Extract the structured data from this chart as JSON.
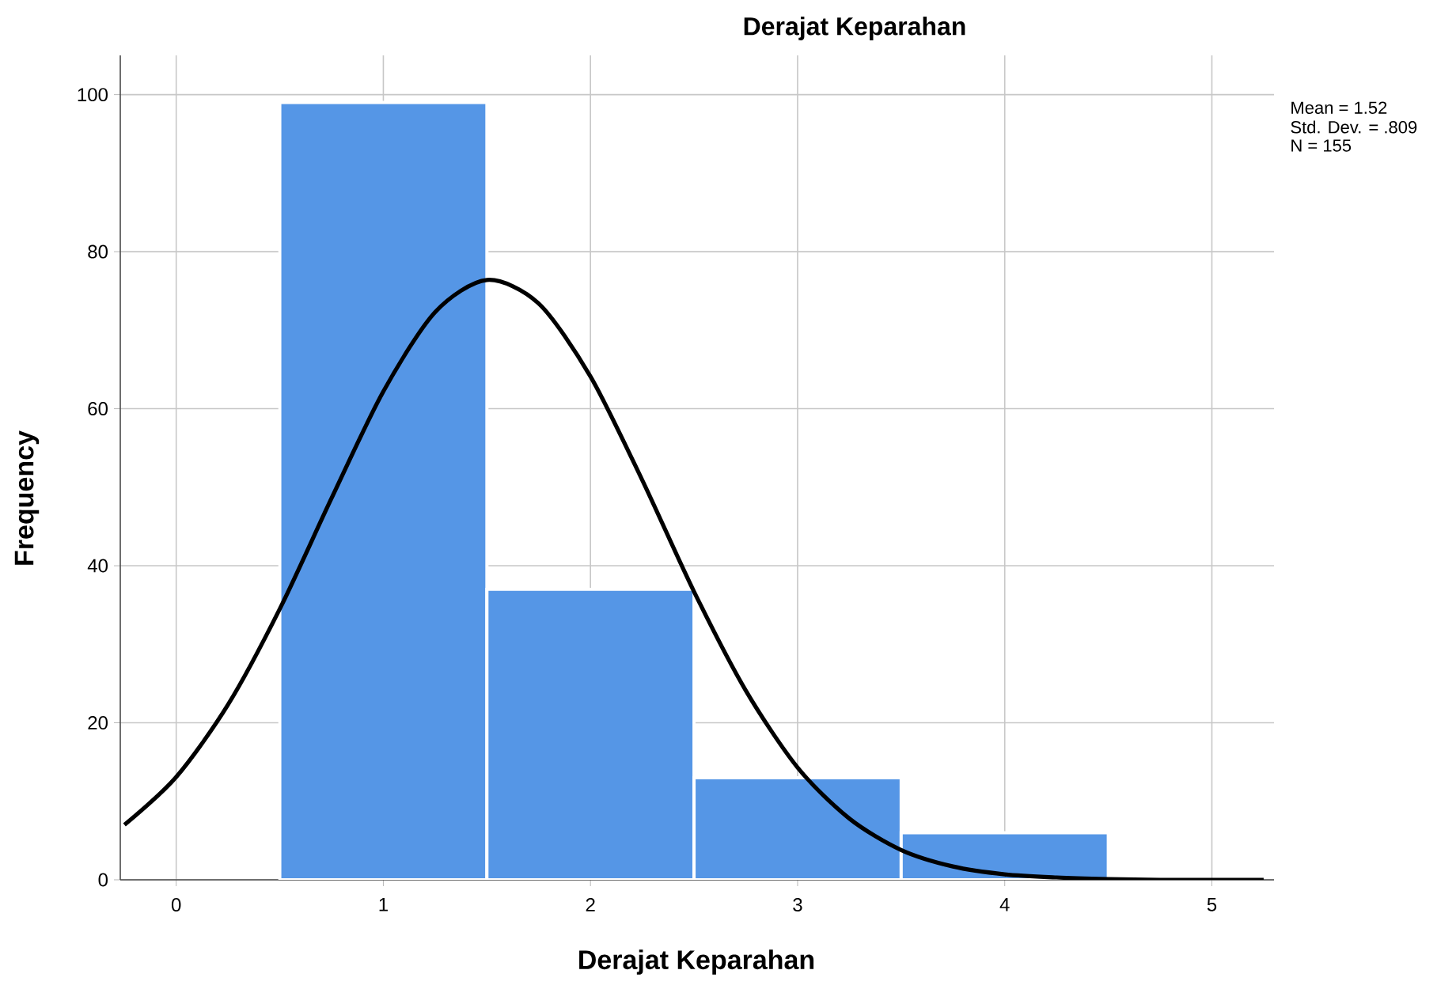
{
  "chart_data": {
    "type": "histogram",
    "title": "Derajat Keparahan",
    "xlabel": "Derajat Keparahan",
    "ylabel": "Frequency",
    "annotations": [
      "Mean = 1.52",
      "Std. Dev. = .809",
      "N = 155"
    ],
    "xlim": [
      -0.27,
      5.3
    ],
    "ylim": [
      0,
      105
    ],
    "xticks": [
      0,
      1,
      2,
      3,
      4,
      5
    ],
    "yticks": [
      0,
      20,
      40,
      60,
      80,
      100
    ],
    "grid": true,
    "series": [
      {
        "bins": [
          0.5,
          1.5,
          2.5,
          3.5,
          4.5
        ],
        "values": [
          99,
          37,
          13,
          6
        ],
        "color": "#5596e6"
      },
      {
        "type": "line",
        "color": "#000000",
        "x": [
          -0.25,
          0,
          0.25,
          0.5,
          0.75,
          1,
          1.25,
          1.5,
          1.75,
          2,
          2.25,
          2.5,
          2.75,
          3,
          3.25,
          3.5,
          3.75,
          4,
          4.25,
          4.5,
          4.75,
          5,
          5.25
        ],
        "values": [
          7.0,
          13.1,
          22.3,
          34.5,
          48.6,
          62.2,
          72.3,
          76.4,
          73.4,
          64.1,
          50.9,
          36.7,
          24.1,
          14.3,
          7.8,
          3.8,
          1.7,
          0.7,
          0.3,
          0.1,
          0,
          0,
          0
        ]
      }
    ]
  }
}
